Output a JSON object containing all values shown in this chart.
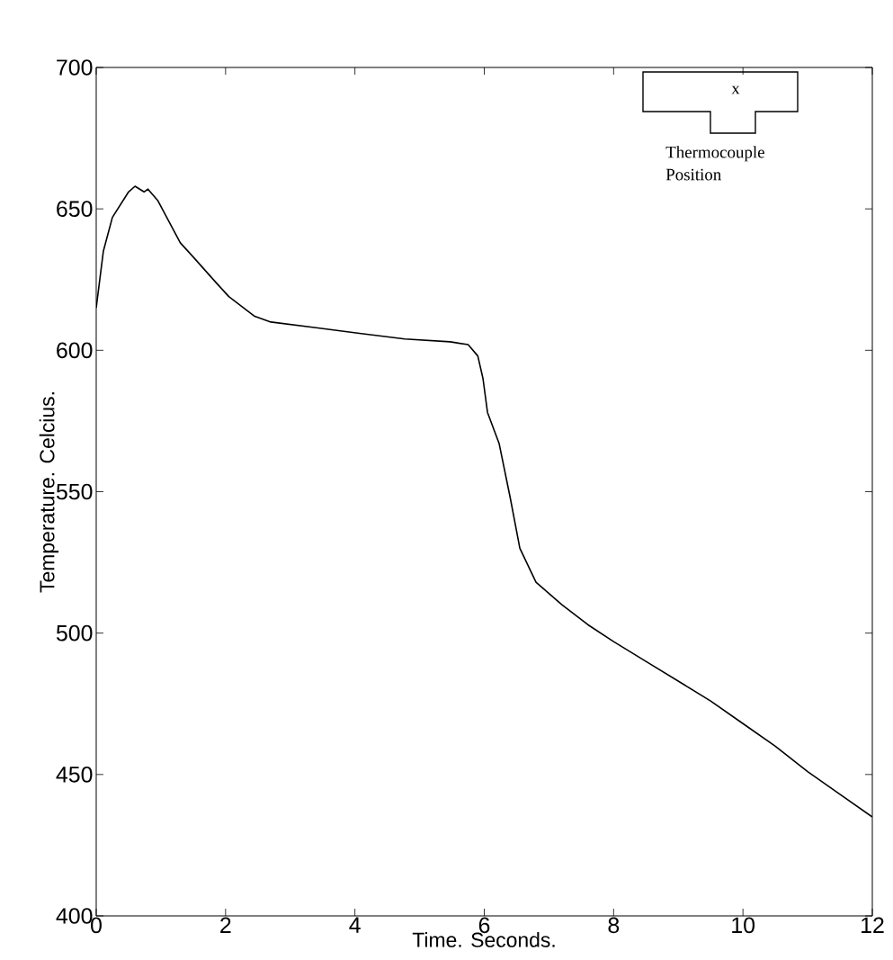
{
  "chart_data": {
    "type": "line",
    "xlabel": "Time. Seconds.",
    "ylabel": "Temperature. Celcius.",
    "xlim": [
      0,
      12
    ],
    "ylim": [
      400,
      700
    ],
    "xticks": [
      0,
      2,
      4,
      6,
      8,
      10,
      12
    ],
    "yticks": [
      400,
      450,
      500,
      550,
      600,
      650,
      700
    ],
    "grid": false,
    "marker": "none",
    "line_style": "solid",
    "annotations": [
      "x",
      "Thermocouple Position"
    ],
    "series": [
      {
        "color": "#000000",
        "x": [
          0,
          0.11,
          0.25,
          0.5,
          0.6,
          0.74,
          0.8,
          0.95,
          1.3,
          1.5,
          1.85,
          2.05,
          2.45,
          2.7,
          3.4,
          4.07,
          4.77,
          5.47,
          5.75,
          5.9,
          5.98,
          6.05,
          6.23,
          6.4,
          6.55,
          6.8,
          7.2,
          7.6,
          8.0,
          8.5,
          9.0,
          9.5,
          10.0,
          10.5,
          11.0,
          11.5,
          12.0
        ],
        "values": [
          615,
          635,
          647,
          656,
          658,
          656,
          657,
          653,
          638,
          633,
          624,
          619,
          612,
          610,
          608,
          606,
          604,
          603,
          602,
          598,
          590,
          578,
          567,
          548,
          530,
          518,
          510,
          503,
          497,
          490,
          483,
          476,
          468,
          460,
          451,
          443,
          435
        ]
      }
    ]
  }
}
